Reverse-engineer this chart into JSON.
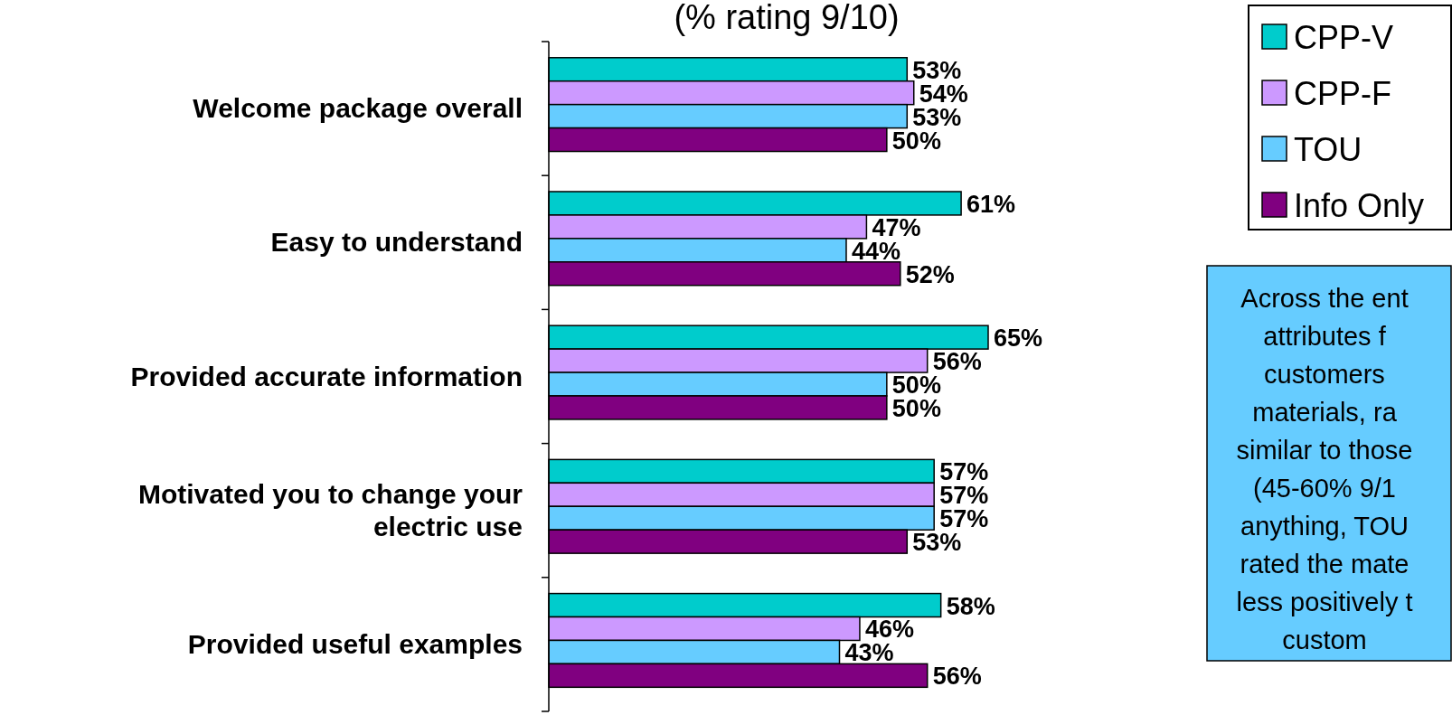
{
  "chart_data": {
    "type": "bar",
    "orientation": "horizontal",
    "title": "(% rating 9/10)",
    "categories": [
      "Welcome package overall",
      "Easy to understand",
      "Provided accurate information",
      "Motivated you to change your electric use",
      "Provided useful examples"
    ],
    "series": [
      {
        "name": "CPP-V",
        "color": "#00cccc",
        "values": [
          53,
          61,
          65,
          57,
          58
        ],
        "value_labels": [
          "53%",
          "61%",
          "65%",
          "57%",
          "58%"
        ]
      },
      {
        "name": "CPP-F",
        "color": "#cc99ff",
        "values": [
          54,
          47,
          56,
          57,
          46
        ],
        "value_labels": [
          "54%",
          "47%",
          "56%",
          "57%",
          "46%"
        ]
      },
      {
        "name": "TOU",
        "color": "#66ccff",
        "values": [
          53,
          44,
          50,
          57,
          43
        ],
        "value_labels": [
          "53%",
          "44%",
          "50%",
          "57%",
          "43%"
        ]
      },
      {
        "name": "Info Only",
        "color": "#800080",
        "values": [
          50,
          52,
          50,
          53,
          56
        ],
        "value_labels": [
          "50%",
          "52%",
          "50%",
          "53%",
          "56%"
        ]
      }
    ],
    "legend": "top right",
    "annotations": [
      "Across the ent\nattributes f\ncustomers\nmaterials, ra\nsimilar to those\n(45-60% 9/1\nanything, TOU\nrated the mate\nless positively t\ncustom"
    ]
  }
}
